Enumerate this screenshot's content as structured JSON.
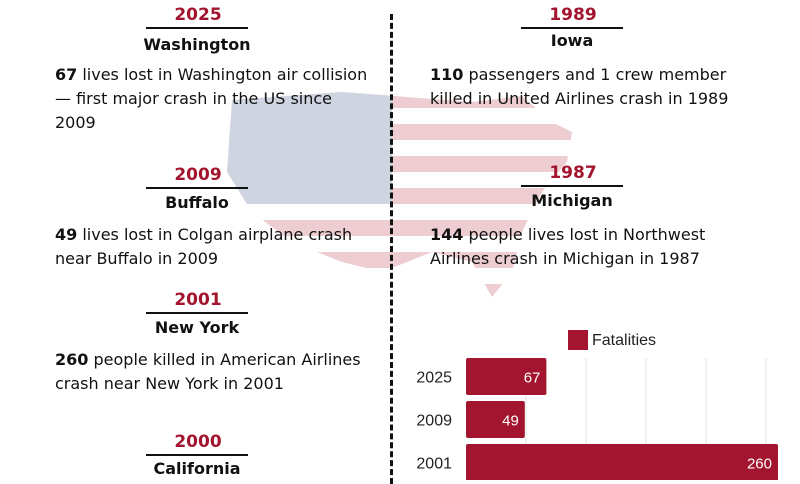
{
  "events": [
    {
      "year": "2025",
      "place": "Washington",
      "count": "67",
      "text": " lives lost in Washington air collision — first major crash in the US since 2009"
    },
    {
      "year": "2009",
      "place": "Buffalo",
      "count": "49",
      "text": " lives lost in Colgan airplane crash near Buffalo in 2009"
    },
    {
      "year": "2001",
      "place": "New York",
      "count": "260",
      "text": " people killed in American Airlines crash near New York in 2001"
    },
    {
      "year": "2000",
      "place": "California",
      "count": "",
      "text": ""
    },
    {
      "year": "1989",
      "place": "Iowa",
      "count": "110",
      "text": " passengers and 1 crew member killed in United Airlines crash in 1989"
    },
    {
      "year": "1987",
      "place": "Michigan",
      "count": "144",
      "text": " people lives lost in Northwest Airlines crash in Michigan in 1987"
    }
  ],
  "colors": {
    "accent": "#a3152e",
    "text": "#111111",
    "flag_blue": "#2a3f7a"
  },
  "chart_data": {
    "type": "bar",
    "orientation": "horizontal",
    "categories": [
      "2025",
      "2009",
      "2001"
    ],
    "series": [
      {
        "name": "Fatalities",
        "values": [
          67,
          49,
          260
        ],
        "color": "#a3152e"
      }
    ],
    "xlim": [
      0,
      300
    ],
    "grid": true,
    "legend": "top"
  }
}
